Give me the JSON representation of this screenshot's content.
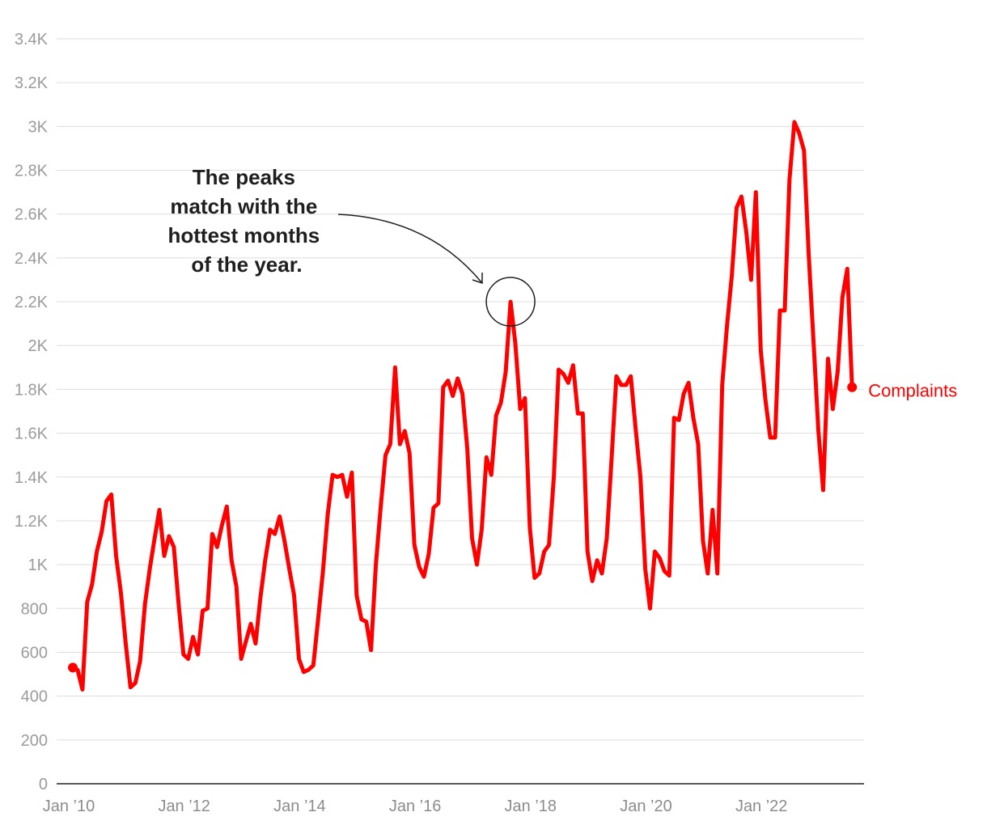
{
  "chart_data": {
    "type": "line",
    "title": "",
    "xlabel": "",
    "ylabel": "",
    "ylim": [
      0,
      3400
    ],
    "xlim": [
      "2010-01",
      "2023-12"
    ],
    "grid": true,
    "accent_color": "#ff0000",
    "yticks": [
      {
        "value": 0,
        "label": "0"
      },
      {
        "value": 200,
        "label": "200"
      },
      {
        "value": 400,
        "label": "400"
      },
      {
        "value": 600,
        "label": "600"
      },
      {
        "value": 800,
        "label": "800"
      },
      {
        "value": 1000,
        "label": "1K"
      },
      {
        "value": 1200,
        "label": "1.2K"
      },
      {
        "value": 1400,
        "label": "1.4K"
      },
      {
        "value": 1600,
        "label": "1.6K"
      },
      {
        "value": 1800,
        "label": "1.8K"
      },
      {
        "value": 2000,
        "label": "2K"
      },
      {
        "value": 2200,
        "label": "2.2K"
      },
      {
        "value": 2400,
        "label": "2.4K"
      },
      {
        "value": 2600,
        "label": "2.6K"
      },
      {
        "value": 2800,
        "label": "2.8K"
      },
      {
        "value": 3000,
        "label": "3K"
      },
      {
        "value": 3200,
        "label": "3.2K"
      },
      {
        "value": 3400,
        "label": "3.4K"
      }
    ],
    "xticks": [
      {
        "value": "2010-01",
        "label": "Jan ’10"
      },
      {
        "value": "2012-01",
        "label": "Jan ’12"
      },
      {
        "value": "2014-01",
        "label": "Jan ’14"
      },
      {
        "value": "2016-01",
        "label": "Jan ’16"
      },
      {
        "value": "2018-01",
        "label": "Jan ’18"
      },
      {
        "value": "2020-01",
        "label": "Jan ’20"
      },
      {
        "value": "2022-01",
        "label": "Jan ’22"
      }
    ],
    "series": [
      {
        "name": "Complaints",
        "color": "#ff0000",
        "start": "2010-01",
        "frequency": "monthly",
        "values": [
          530,
          520,
          430,
          830,
          910,
          1060,
          1150,
          1290,
          1320,
          1040,
          870,
          640,
          440,
          460,
          560,
          820,
          980,
          1120,
          1250,
          1040,
          1130,
          1080,
          820,
          590,
          570,
          670,
          590,
          790,
          800,
          1140,
          1080,
          1180,
          1265,
          1020,
          900,
          570,
          650,
          730,
          640,
          850,
          1020,
          1160,
          1140,
          1220,
          1110,
          980,
          860,
          570,
          510,
          520,
          540,
          750,
          970,
          1230,
          1410,
          1400,
          1410,
          1310,
          1420,
          860,
          750,
          740,
          610,
          1000,
          1260,
          1500,
          1550,
          1900,
          1550,
          1610,
          1510,
          1090,
          990,
          945,
          1050,
          1260,
          1280,
          1810,
          1840,
          1770,
          1850,
          1780,
          1530,
          1120,
          1000,
          1160,
          1490,
          1410,
          1680,
          1740,
          1880,
          2200,
          2010,
          1710,
          1760,
          1170,
          940,
          960,
          1060,
          1090,
          1400,
          1890,
          1870,
          1830,
          1910,
          1690,
          1690,
          1060,
          925,
          1020,
          960,
          1120,
          1480,
          1860,
          1820,
          1820,
          1860,
          1620,
          1400,
          980,
          800,
          1060,
          1030,
          970,
          950,
          1670,
          1660,
          1780,
          1830,
          1670,
          1550,
          1110,
          960,
          1250,
          960,
          1820,
          2090,
          2320,
          2630,
          2680,
          2520,
          2300,
          2700,
          1980,
          1750,
          1580,
          1580,
          2160,
          2160,
          2760,
          3020,
          2970,
          2890,
          2410,
          2010,
          1610,
          1340,
          1940,
          1710,
          1880,
          2220,
          2350,
          1810
        ]
      }
    ],
    "annotation": {
      "lines": [
        "The peaks",
        "match with the",
        "hottest months",
        "of the year."
      ],
      "target_date": "2017-08",
      "target_value": 2200
    }
  }
}
